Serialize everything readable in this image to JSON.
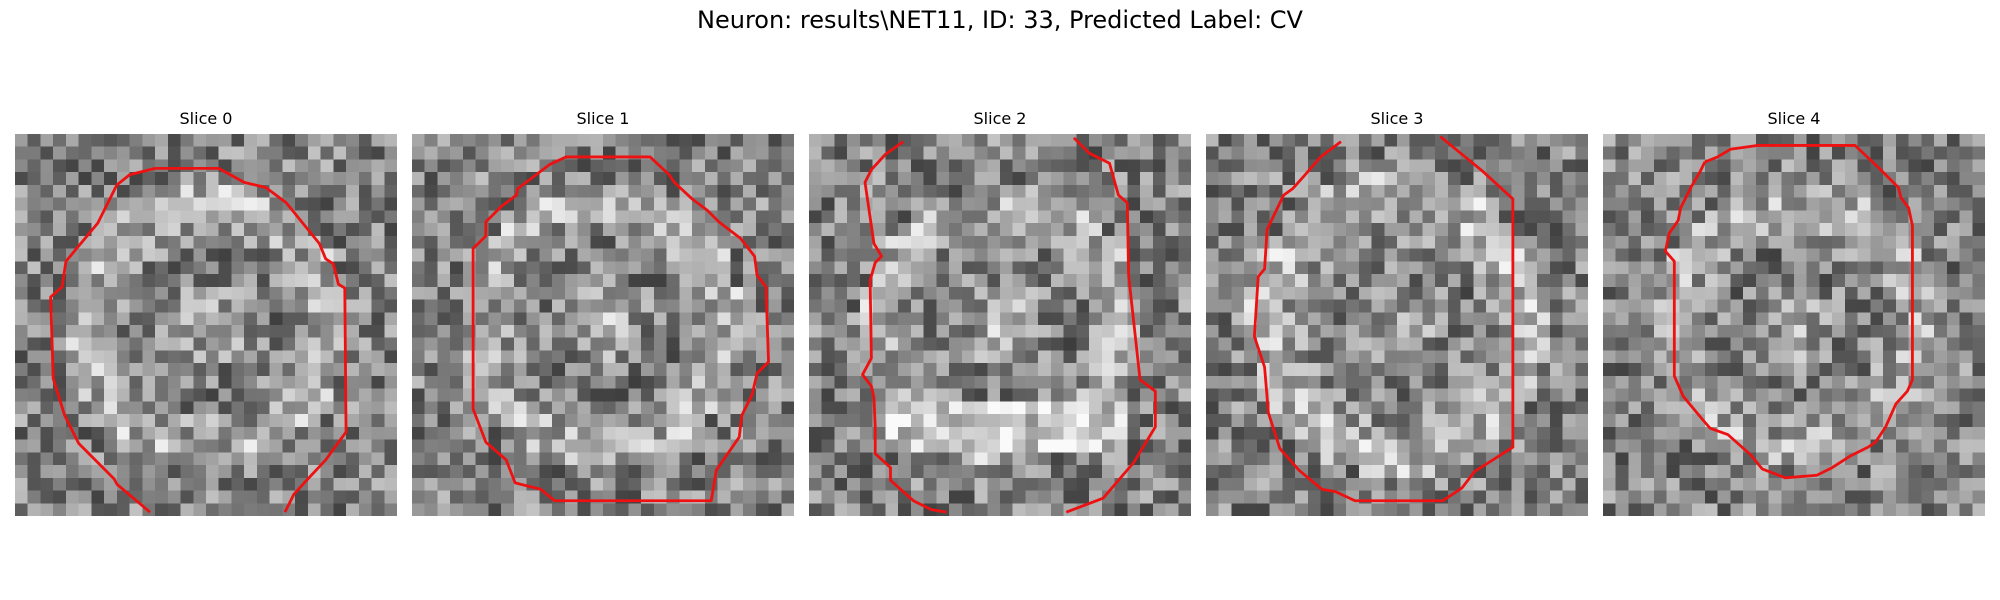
{
  "figure": {
    "title": "Neuron: results\\NET11, ID: 33, Predicted Label: CV"
  },
  "panels": [
    {
      "title": "Slice 0"
    },
    {
      "title": "Slice 1"
    },
    {
      "title": "Slice 2"
    },
    {
      "title": "Slice 3"
    },
    {
      "title": "Slice 4"
    }
  ],
  "colors": {
    "contour": "#ee1111",
    "background": "#ffffff"
  }
}
